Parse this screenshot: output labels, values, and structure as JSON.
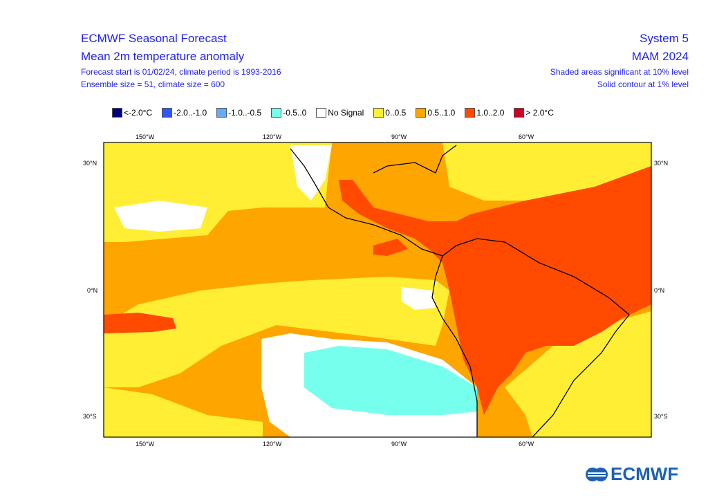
{
  "header": {
    "title": "ECMWF Seasonal Forecast",
    "subtitle": "Mean 2m temperature anomaly",
    "line3": "Forecast start is 01/02/24, climate period is 1993-2016",
    "line4": "Ensemble size = 51, climate size = 600",
    "system": "System 5",
    "season": "MAM 2024",
    "note1": "Shaded areas significant at 10% level",
    "note2": "Solid contour at 1% level"
  },
  "legend": [
    {
      "label": "<-2.0°C",
      "color": "#000080"
    },
    {
      "label": "-2.0..-1.0",
      "color": "#3355ff"
    },
    {
      "label": "-1.0..-0.5",
      "color": "#66aaff"
    },
    {
      "label": "-0.5..0",
      "color": "#77ffee"
    },
    {
      "label": "No Signal",
      "color": "#ffffff"
    },
    {
      "label": "0..0.5",
      "color": "#ffee33"
    },
    {
      "label": "0.5..1.0",
      "color": "#ffa500"
    },
    {
      "label": "1.0..2.0",
      "color": "#ff4a00"
    },
    {
      "label": "> 2.0°C",
      "color": "#cc0022"
    }
  ],
  "axes": {
    "lon_top": [
      "150°W",
      "120°W",
      "90°W",
      "60°W"
    ],
    "lon_bottom": [
      "150°W",
      "120°W",
      "90°W",
      "60°W"
    ],
    "lat_left": [
      "30°N",
      "0°N",
      "30°S"
    ],
    "lat_right": [
      "30°N",
      "0°N",
      "30°S"
    ]
  },
  "logo": "ECMWF"
}
